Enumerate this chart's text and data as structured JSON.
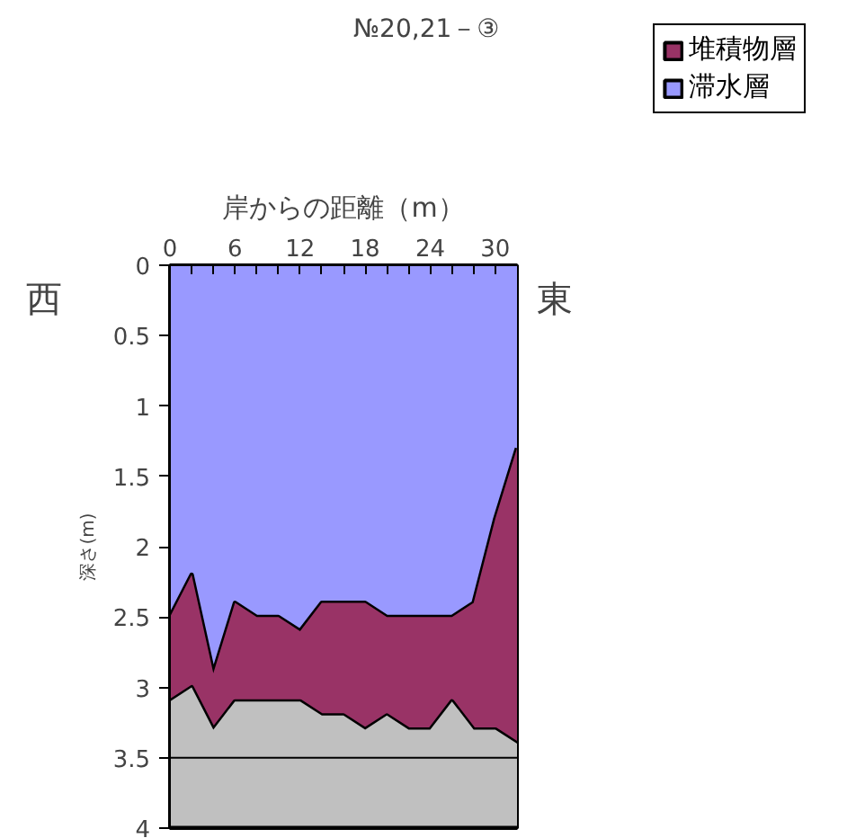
{
  "chart_data": {
    "type": "area",
    "stacked": true,
    "title": "№20,21－③",
    "xlabel": "岸からの距離（m）",
    "ylabel": "深さ(m)",
    "annotations": [
      "西",
      "東"
    ],
    "x": [
      0,
      2,
      4,
      6,
      8,
      10,
      12,
      14,
      16,
      18,
      20,
      22,
      24,
      26,
      28,
      30,
      32
    ],
    "xlim": [
      0,
      32
    ],
    "xticks": [
      0,
      {
        "value": 2,
        "label": null
      },
      {
        "value": 4,
        "label": null
      },
      6,
      {
        "value": 8,
        "label": null
      },
      {
        "value": 10,
        "label": null
      },
      12,
      {
        "value": 14,
        "label": null
      },
      {
        "value": 16,
        "label": null
      },
      18,
      {
        "value": 20,
        "label": null
      },
      {
        "value": 22,
        "label": null
      },
      24,
      {
        "value": 26,
        "label": null
      },
      {
        "value": 28,
        "label": null
      },
      30
    ],
    "ylim": [
      4,
      0
    ],
    "yticks": [
      0,
      0.5,
      1,
      1.5,
      2,
      2.5,
      3,
      3.5,
      4
    ],
    "series": [
      {
        "name": "滞水層",
        "color": "#9999ff",
        "values": [
          2.5,
          2.2,
          2.9,
          2.4,
          2.5,
          2.5,
          2.6,
          2.4,
          2.4,
          2.4,
          2.5,
          2.5,
          2.5,
          2.5,
          2.4,
          1.8,
          1.3
        ]
      },
      {
        "name": "堆積物層",
        "color": "#993366",
        "values": [
          0.6,
          0.8,
          0.4,
          0.7,
          0.6,
          0.6,
          0.5,
          0.8,
          0.8,
          0.9,
          0.7,
          0.8,
          0.8,
          0.6,
          0.9,
          1.5,
          2.1
        ]
      },
      {
        "color": "#c0c0c0",
        "values": [
          0.9,
          1.0,
          0.7,
          0.9,
          0.9,
          0.9,
          0.9,
          0.8,
          0.8,
          0.7,
          0.8,
          0.7,
          0.7,
          0.9,
          0.7,
          0.7,
          0.6
        ]
      }
    ],
    "ref_lines": [
      {
        "axis": "y",
        "value": 3.5,
        "color": "#000000"
      }
    ],
    "legend": "top right"
  }
}
